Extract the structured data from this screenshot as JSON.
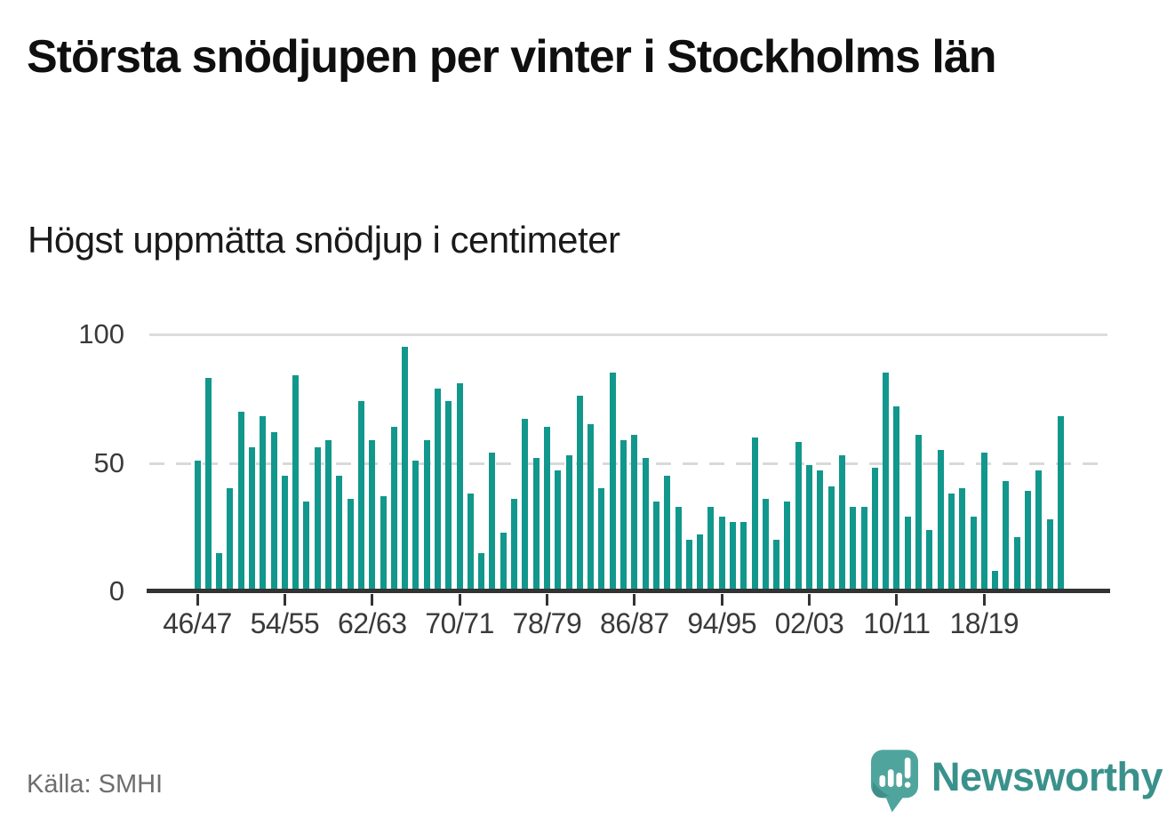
{
  "header": {
    "title": "Största snödjupen per vinter i Stockholms län",
    "subtitle": "Högst uppmätta snödjup i centimeter"
  },
  "footer": {
    "source": "Källa: SMHI",
    "logo_text": "Newsworthy"
  },
  "colors": {
    "bar": "#12978D",
    "grid": "#DCDCDC",
    "axis": "#333333",
    "logo_bubble": "#4FA59E",
    "logo_bubble_shade": "#3F8F89",
    "logo_text": "#3A918B",
    "muted_text": "#6E6E6E"
  },
  "chart_data": {
    "type": "bar",
    "title": "Största snödjupen per vinter i Stockholms län",
    "subtitle": "Högst uppmätta snödjup i centimeter",
    "xlabel": "",
    "ylabel": "",
    "unit": "cm",
    "ylim": [
      0,
      100
    ],
    "yticks": [
      0,
      50,
      100
    ],
    "grid": "horizontal, gridline at 100 solid, gridline at 50 dashed",
    "legend": "none",
    "x_tick_every": 8,
    "x_tick_labels": [
      "46/47",
      "54/55",
      "62/63",
      "70/71",
      "78/79",
      "86/87",
      "94/95",
      "02/03",
      "10/11",
      "18/19"
    ],
    "categories": [
      "46/47",
      "47/48",
      "48/49",
      "49/50",
      "50/51",
      "51/52",
      "52/53",
      "53/54",
      "54/55",
      "55/56",
      "56/57",
      "57/58",
      "58/59",
      "59/60",
      "60/61",
      "61/62",
      "62/63",
      "63/64",
      "64/65",
      "65/66",
      "66/67",
      "67/68",
      "68/69",
      "69/70",
      "70/71",
      "71/72",
      "72/73",
      "73/74",
      "74/75",
      "75/76",
      "76/77",
      "77/78",
      "78/79",
      "79/80",
      "80/81",
      "81/82",
      "82/83",
      "83/84",
      "84/85",
      "85/86",
      "86/87",
      "87/88",
      "88/89",
      "89/90",
      "90/91",
      "91/92",
      "92/93",
      "93/94",
      "94/95",
      "95/96",
      "96/97",
      "97/98",
      "98/99",
      "99/00",
      "00/01",
      "01/02",
      "02/03",
      "03/04",
      "04/05",
      "05/06",
      "06/07",
      "07/08",
      "08/09",
      "09/10",
      "10/11",
      "11/12",
      "12/13",
      "13/14",
      "14/15",
      "15/16",
      "16/17",
      "17/18",
      "18/19",
      "19/20",
      "20/21",
      "21/22",
      "22/23",
      "23/24",
      "24/25",
      "25/26"
    ],
    "values": [
      51,
      83,
      15,
      40,
      70,
      56,
      68,
      62,
      45,
      84,
      35,
      56,
      59,
      45,
      36,
      74,
      59,
      37,
      64,
      95,
      51,
      59,
      79,
      74,
      81,
      38,
      15,
      54,
      23,
      36,
      67,
      52,
      64,
      47,
      53,
      76,
      65,
      40,
      85,
      59,
      61,
      52,
      35,
      45,
      33,
      20,
      22,
      33,
      29,
      27,
      27,
      60,
      36,
      20,
      35,
      58,
      49,
      47,
      41,
      53,
      33,
      33,
      48,
      85,
      72,
      29,
      61,
      24,
      55,
      38,
      40,
      29,
      54,
      8,
      43,
      21,
      39,
      47,
      28,
      68
    ]
  }
}
